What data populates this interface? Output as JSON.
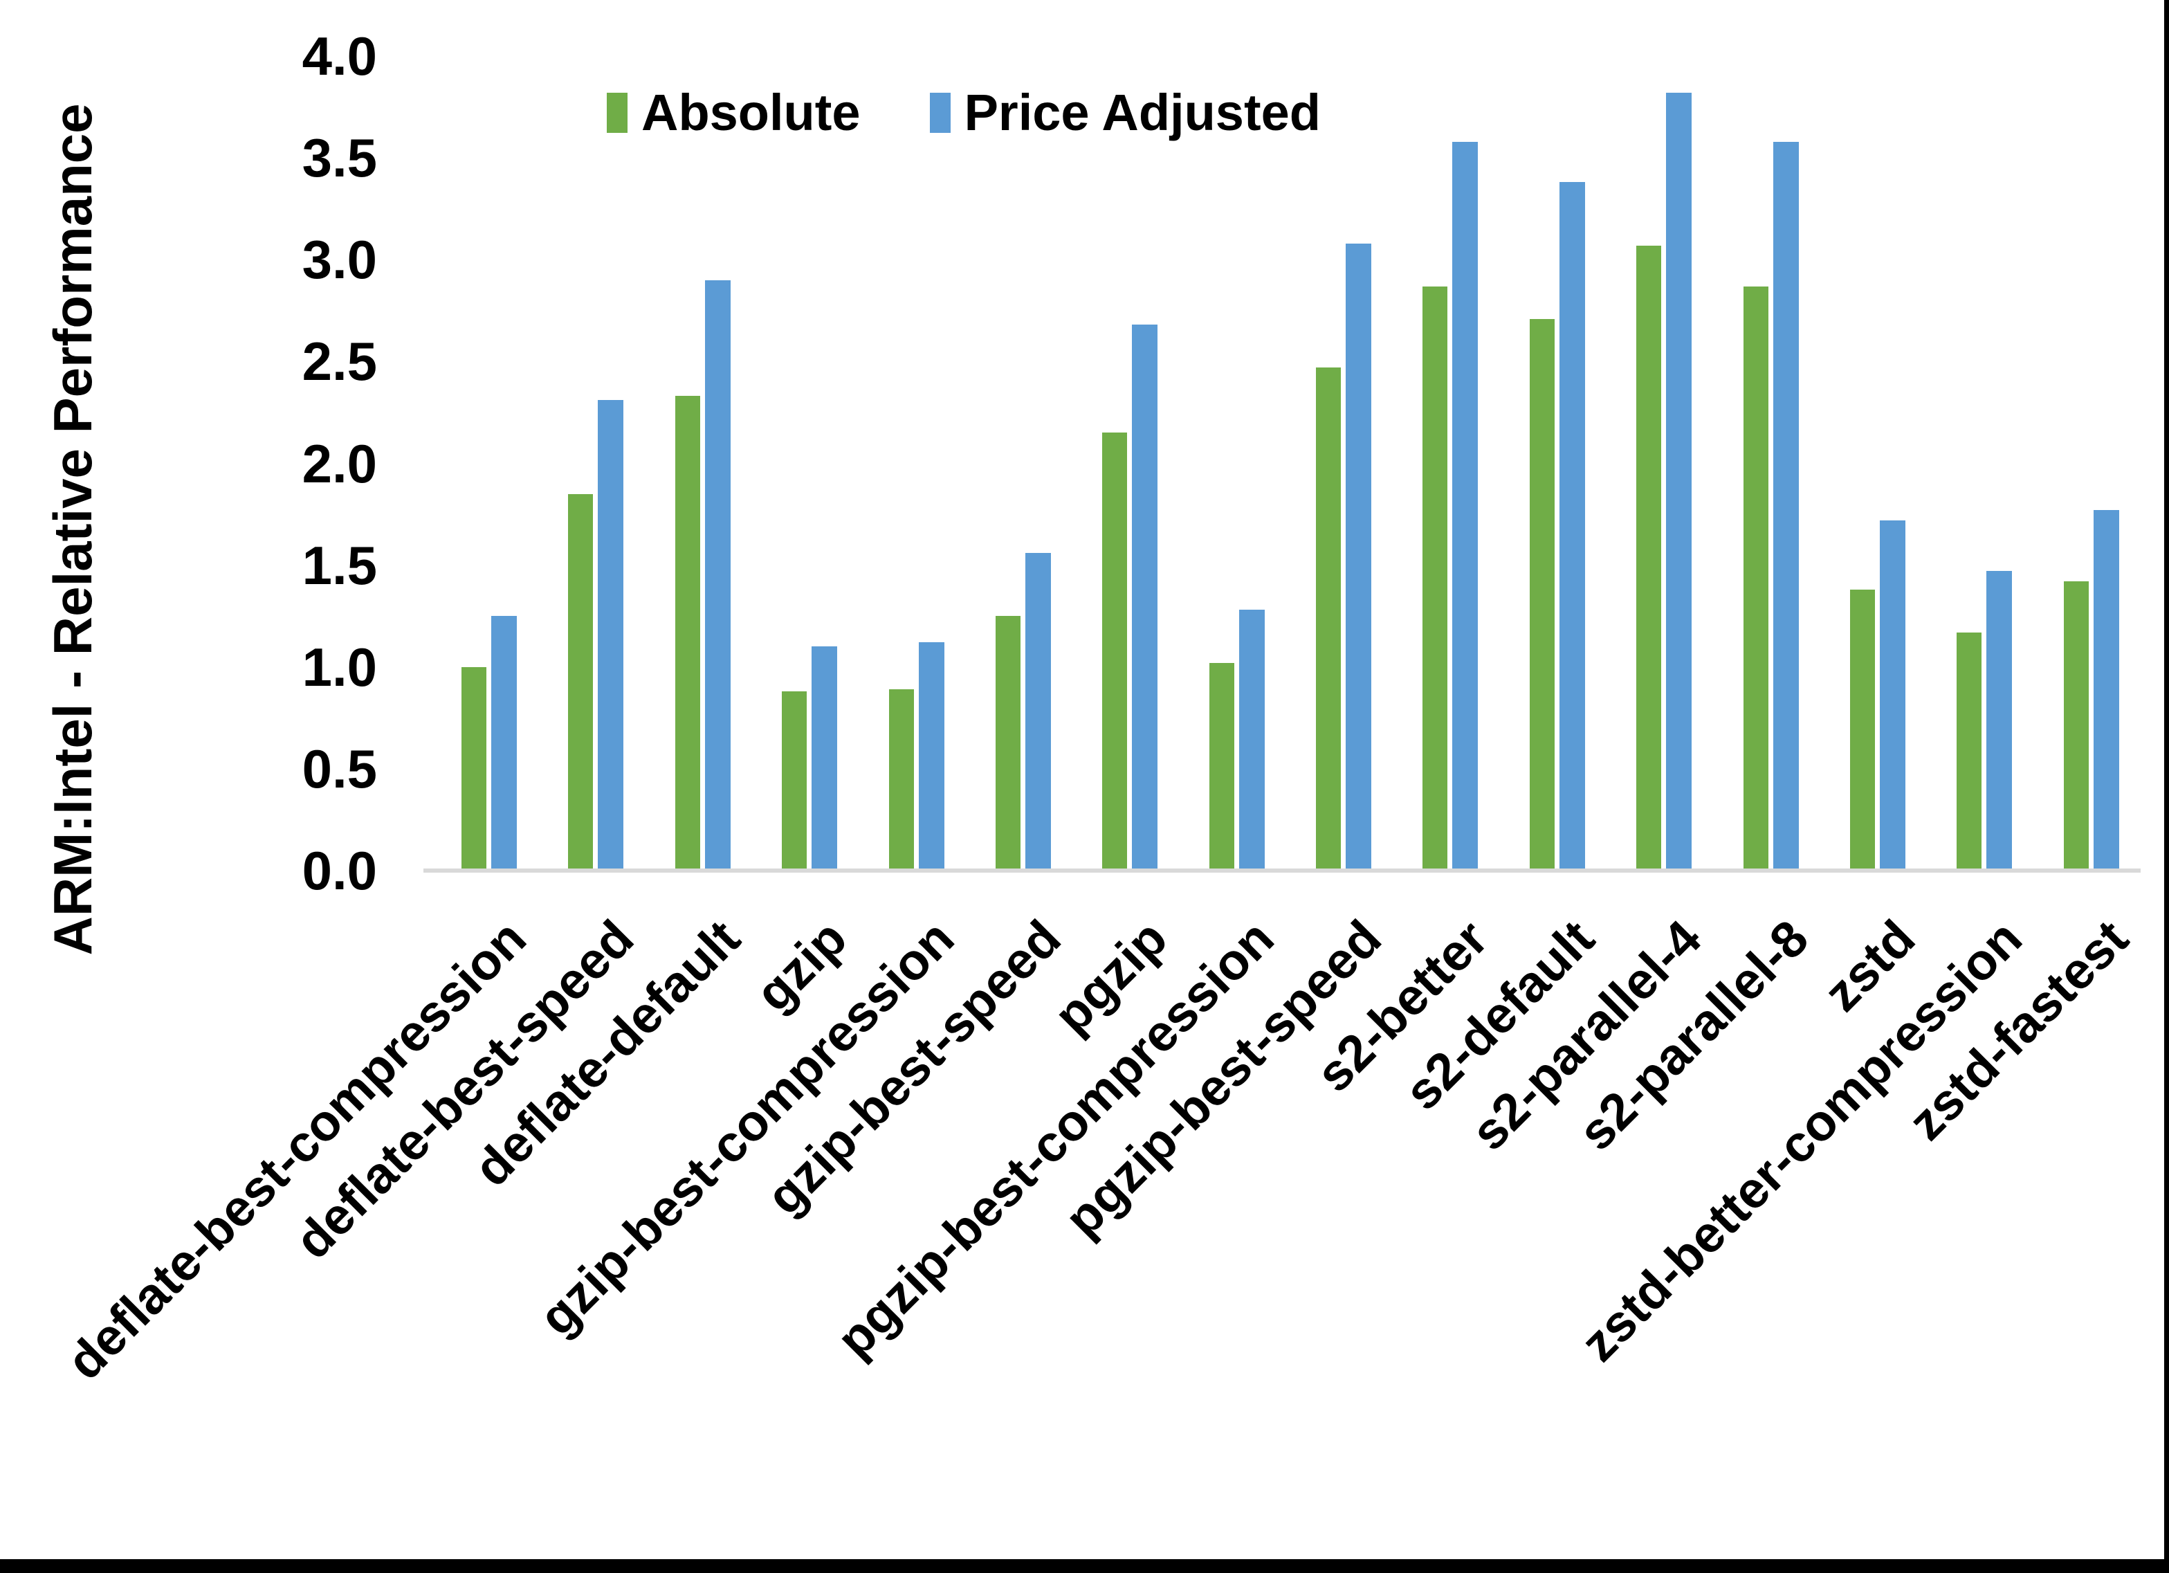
{
  "colors": {
    "background": "#FFFFFF",
    "text": "#000000",
    "axis_line": "#D9D9D9",
    "frame": "#000000",
    "absolute_green": "#70AD47",
    "price_adjusted_blue": "#5B9BD5"
  },
  "chart_data": {
    "type": "bar",
    "title": "",
    "xlabel": "",
    "ylabel": "ARM:Intel - Relative Performance",
    "ylim": [
      0,
      4
    ],
    "ytick_labels": [
      "0.0",
      "0.5",
      "1.0",
      "1.5",
      "2.0",
      "2.5",
      "3.0",
      "3.5",
      "4.0"
    ],
    "grid": false,
    "legend_position": "top-center-inside",
    "categories": [
      "deflate-best-compression",
      "deflate-best-speed",
      "deflate-default",
      "gzip",
      "gzip-best-compression",
      "gzip-best-speed",
      "pgzip",
      "pgzip-best-compression",
      "pgzip-best-speed",
      "s2-better",
      "s2-default",
      "s2-parallel-4",
      "s2-parallel-8",
      "zstd",
      "zstd-better-compression",
      "zstd-fastest"
    ],
    "series": [
      {
        "name": "Absolute",
        "color": "#70AD47",
        "values": [
          1.0,
          1.85,
          2.33,
          0.88,
          0.89,
          1.25,
          2.15,
          1.02,
          2.47,
          2.87,
          2.71,
          3.07,
          2.87,
          1.38,
          1.17,
          1.42
        ]
      },
      {
        "name": "Price Adjusted",
        "color": "#5B9BD5",
        "values": [
          1.25,
          2.31,
          2.9,
          1.1,
          1.12,
          1.56,
          2.68,
          1.28,
          3.08,
          3.58,
          3.38,
          3.82,
          3.58,
          1.72,
          1.47,
          1.77
        ]
      }
    ]
  }
}
